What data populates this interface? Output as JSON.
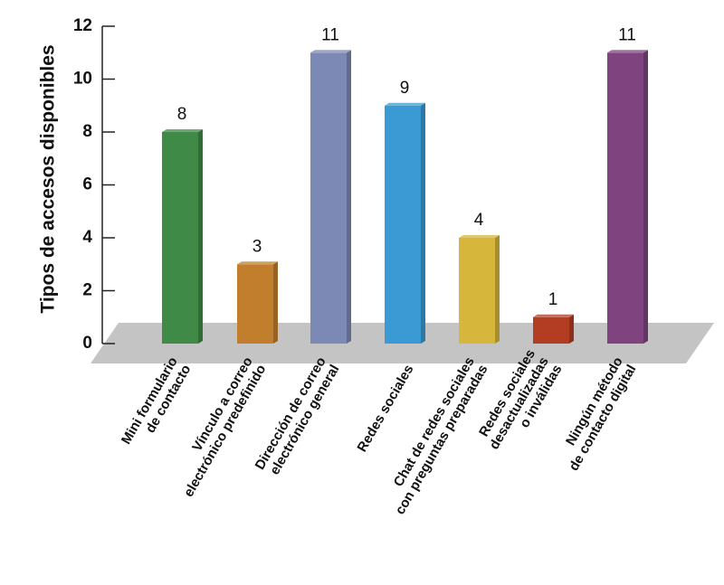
{
  "chart_data": {
    "type": "bar",
    "ylabel": "Tipos de accesos disponibles",
    "ylim": [
      0,
      12
    ],
    "yticks": [
      "0",
      "2",
      "4",
      "6",
      "8",
      "10",
      "12"
    ],
    "grid": false,
    "categories": [
      [
        "Mini formulario",
        "de contacto"
      ],
      [
        "Vínculo a correo",
        "electrónico predefinido"
      ],
      [
        "Dirección de correo",
        "electrónico general"
      ],
      [
        "Redes sociales"
      ],
      [
        "Chat de redes sociales",
        "con preguntas preparadas"
      ],
      [
        "Redes sociales",
        "desactualizadas",
        "o inválidas"
      ],
      [
        "Ningún método",
        "de contacto digital"
      ]
    ],
    "values": [
      8,
      3,
      11,
      9,
      4,
      1,
      11
    ],
    "colors": [
      "#3f8a47",
      "#c17f2e",
      "#7d89b5",
      "#3b9ad3",
      "#d6b63b",
      "#b23d23",
      "#7f447f"
    ],
    "data_labels": [
      "8",
      "3",
      "11",
      "9",
      "4",
      "1",
      "11"
    ]
  }
}
